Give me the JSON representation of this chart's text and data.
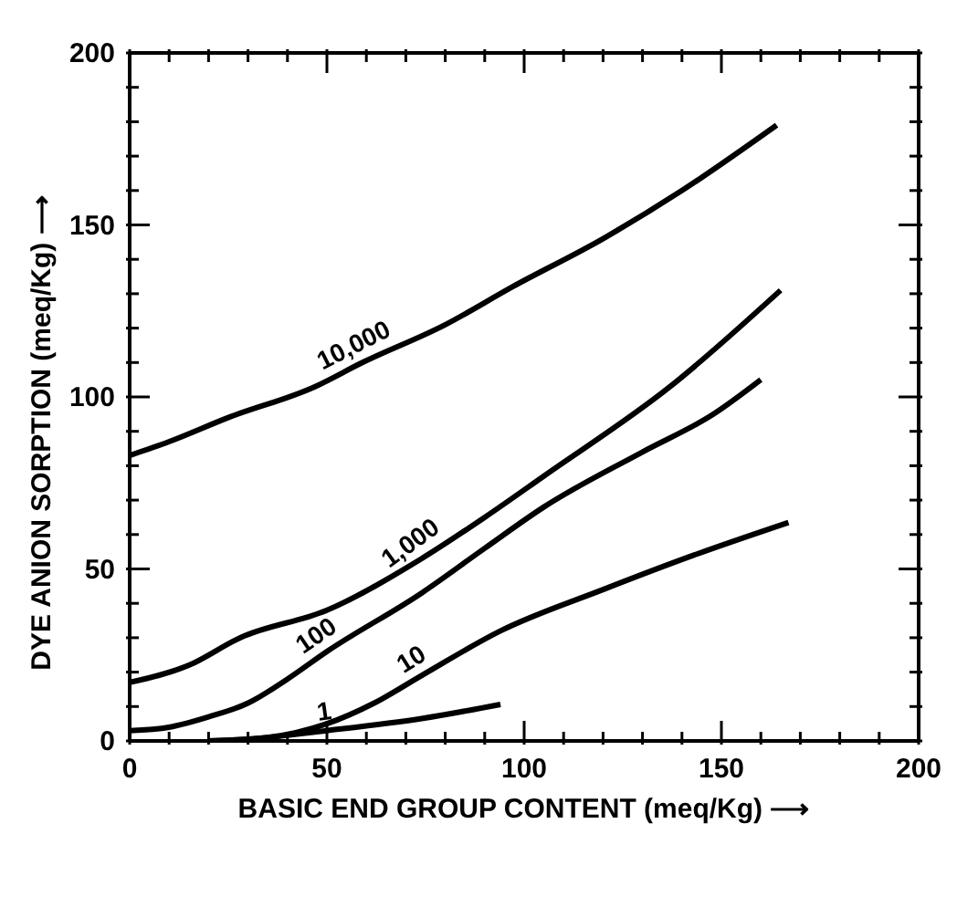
{
  "chart_data": {
    "type": "line",
    "xlabel": "BASIC END GROUP CONTENT (meq/Kg) ⟶",
    "ylabel": "DYE ANION SORPTION (meq/Kg) ⟶",
    "xlim": [
      0,
      200
    ],
    "ylim": [
      0,
      200
    ],
    "xticks": [
      0,
      {
        "value": 10,
        "label": null
      },
      {
        "value": 20,
        "label": null
      },
      {
        "value": 30,
        "label": null
      },
      {
        "value": 40,
        "label": null
      },
      50,
      {
        "value": 60,
        "label": null
      },
      {
        "value": 70,
        "label": null
      },
      {
        "value": 80,
        "label": null
      },
      {
        "value": 90,
        "label": null
      },
      100,
      {
        "value": 110,
        "label": null
      },
      {
        "value": 120,
        "label": null
      },
      {
        "value": 130,
        "label": null
      },
      {
        "value": 140,
        "label": null
      },
      150,
      {
        "value": 160,
        "label": null
      },
      {
        "value": 170,
        "label": null
      },
      {
        "value": 180,
        "label": null
      },
      {
        "value": 190,
        "label": null
      },
      200
    ],
    "yticks": [
      0,
      {
        "value": 10,
        "label": null
      },
      {
        "value": 20,
        "label": null
      },
      {
        "value": 30,
        "label": null
      },
      {
        "value": 40,
        "label": null
      },
      50,
      {
        "value": 60,
        "label": null
      },
      {
        "value": 70,
        "label": null
      },
      {
        "value": 80,
        "label": null
      },
      {
        "value": 90,
        "label": null
      },
      100,
      {
        "value": 110,
        "label": null
      },
      {
        "value": 120,
        "label": null
      },
      {
        "value": 130,
        "label": null
      },
      {
        "value": 140,
        "label": null
      },
      150,
      {
        "value": 160,
        "label": null
      },
      {
        "value": 170,
        "label": null
      },
      {
        "value": 180,
        "label": null
      },
      {
        "value": 190,
        "label": null
      },
      200
    ],
    "marker": "none",
    "line_style": "solid",
    "series": [
      {
        "name": "10,000",
        "color": "#000000",
        "x": [
          0,
          10,
          25,
          47,
          59,
          80,
          97,
          120,
          140,
          164
        ],
        "values": [
          83,
          87,
          94,
          103,
          110,
          121,
          132,
          146,
          160,
          179
        ]
      },
      {
        "name": "1,000",
        "color": "#000000",
        "x": [
          0,
          15,
          28,
          50,
          74,
          90,
          105,
          137,
          165
        ],
        "values": [
          17,
          22,
          30,
          38,
          53,
          65,
          77,
          103,
          131
        ]
      },
      {
        "name": "100",
        "color": "#000000",
        "x": [
          0,
          10,
          20,
          30,
          40,
          50,
          74,
          90,
          105,
          130,
          148,
          160
        ],
        "values": [
          3,
          4,
          7,
          11,
          18,
          26,
          43,
          56,
          68,
          84,
          95,
          105
        ]
      },
      {
        "name": "10",
        "color": "#000000",
        "x": [
          20,
          35,
          50,
          62,
          74,
          94,
          120,
          143,
          167
        ],
        "values": [
          0,
          1,
          5,
          11,
          19,
          32,
          44,
          54,
          63.5
        ]
      },
      {
        "name": "1",
        "color": "#000000",
        "x": [
          20,
          30,
          50,
          74,
          94
        ],
        "values": [
          0,
          0.5,
          3,
          6.5,
          10.6
        ]
      }
    ]
  }
}
